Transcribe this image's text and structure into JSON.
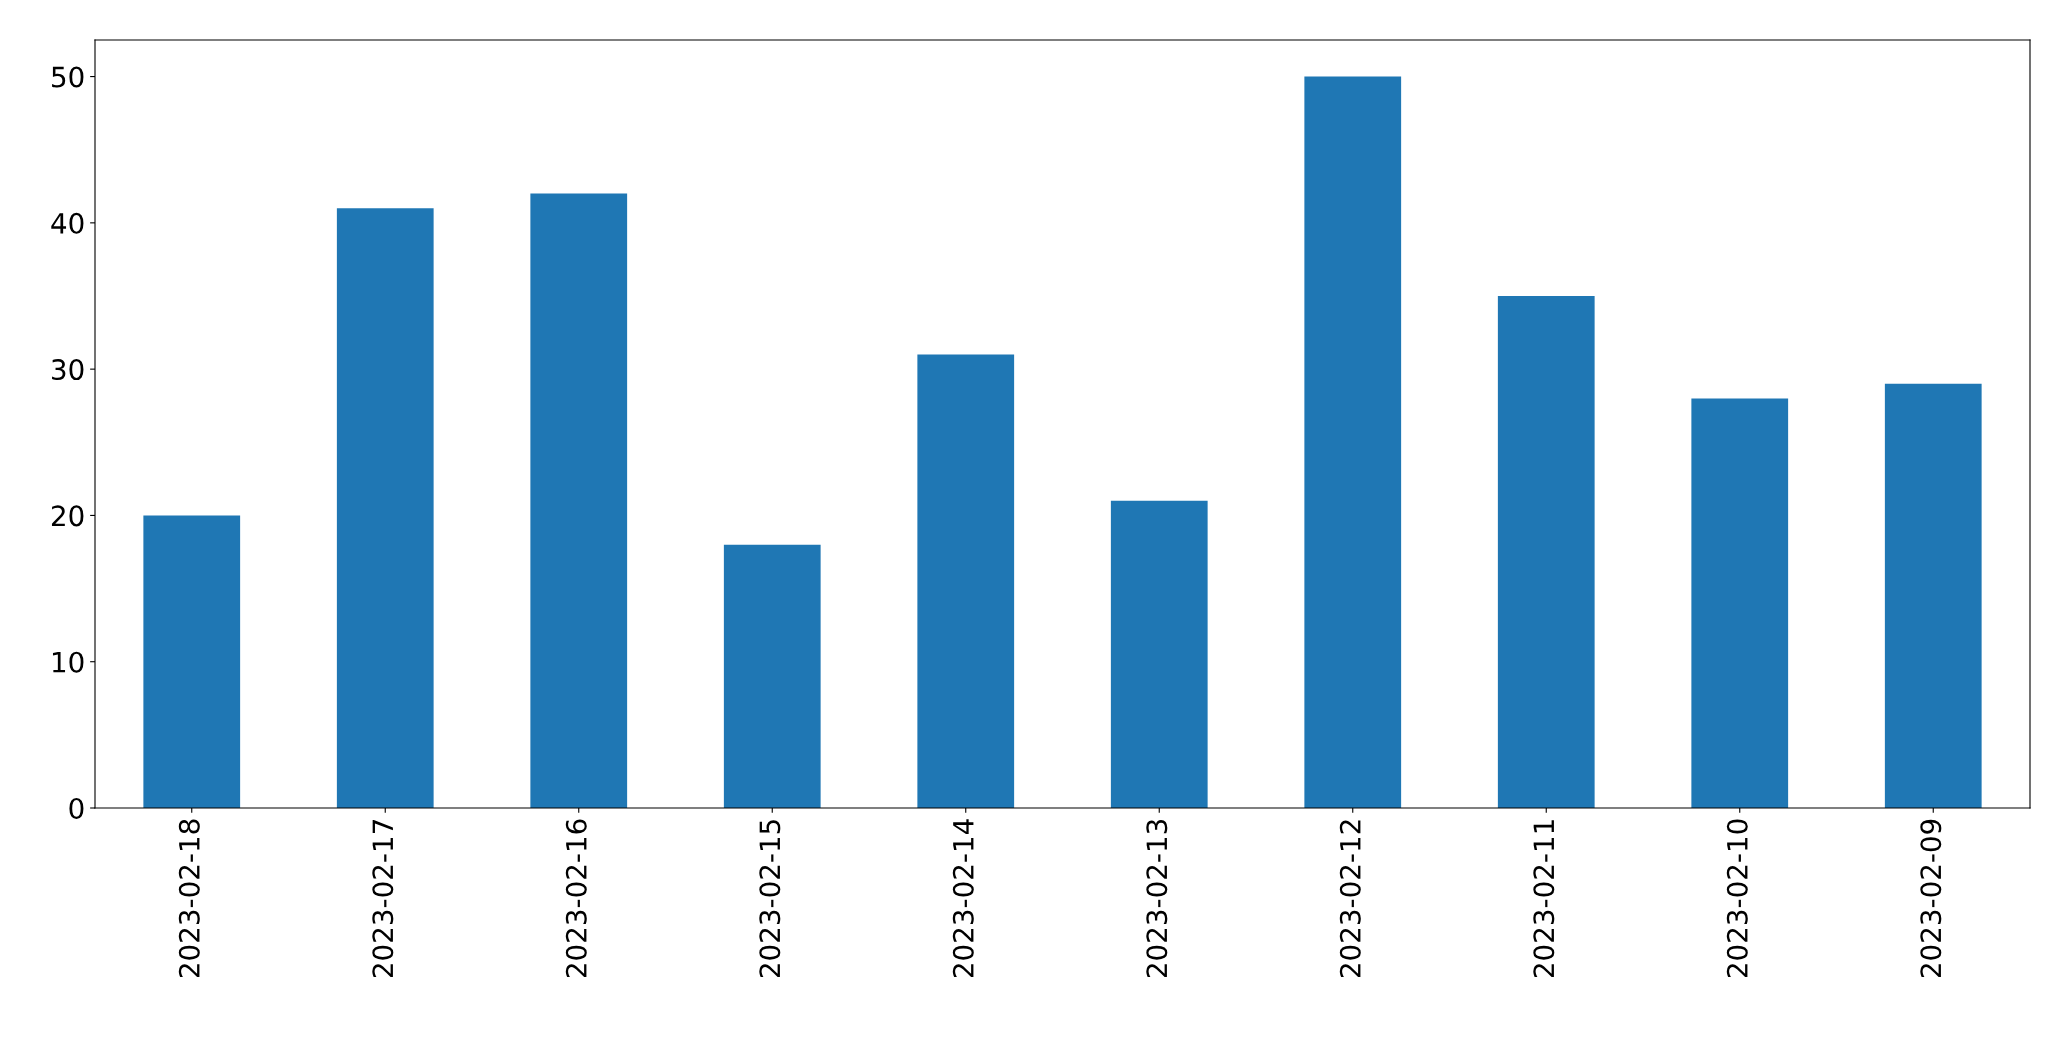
{
  "chart_data": {
    "type": "bar",
    "categories": [
      "2023-02-18",
      "2023-02-17",
      "2023-02-16",
      "2023-02-15",
      "2023-02-14",
      "2023-02-13",
      "2023-02-12",
      "2023-02-11",
      "2023-02-10",
      "2023-02-09"
    ],
    "values": [
      20,
      41,
      42,
      18,
      31,
      21,
      50,
      35,
      28,
      29
    ],
    "color": "#1f77b4",
    "ylim": [
      0,
      52.5
    ],
    "yticks": [
      0,
      10,
      20,
      30,
      40,
      50
    ],
    "grid": false,
    "legend": false
  }
}
